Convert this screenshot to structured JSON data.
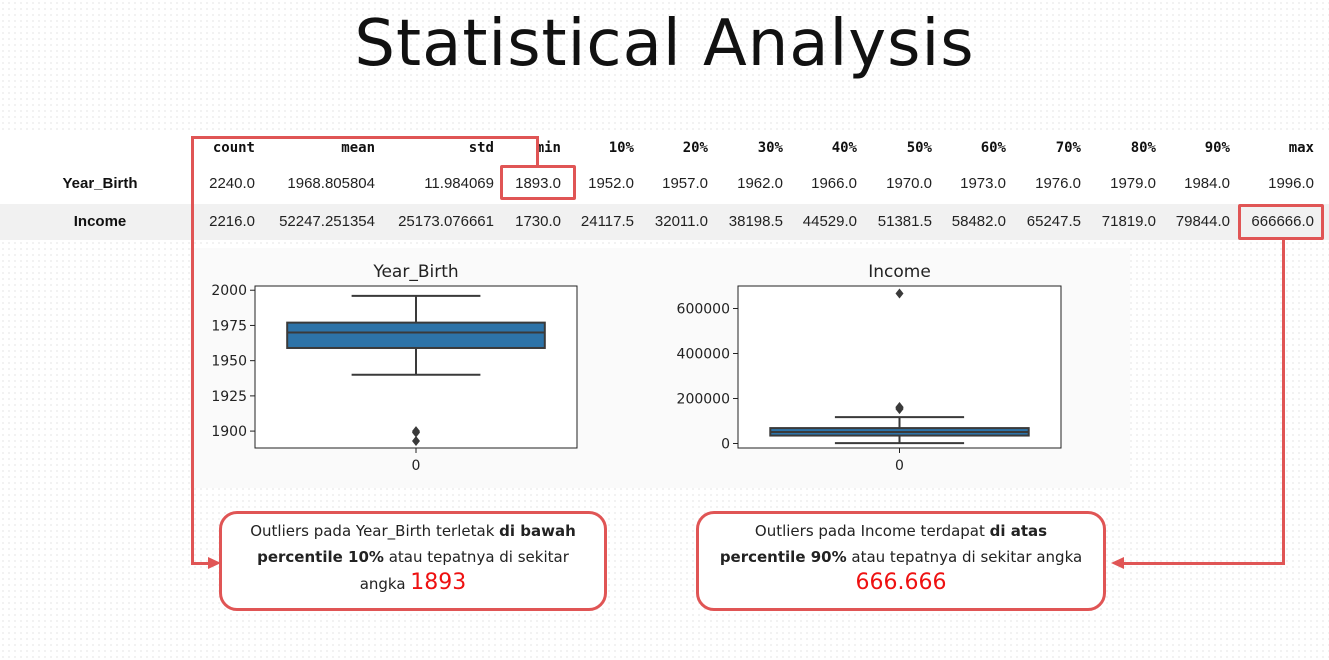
{
  "title": "Statistical Analysis",
  "table": {
    "columns": [
      "count",
      "mean",
      "std",
      "min",
      "10%",
      "20%",
      "30%",
      "40%",
      "50%",
      "60%",
      "70%",
      "80%",
      "90%",
      "max"
    ],
    "rows": [
      {
        "label": "Year_Birth",
        "values": [
          "2240.0",
          "1968.805804",
          "11.984069",
          "1893.0",
          "1952.0",
          "1957.0",
          "1962.0",
          "1966.0",
          "1970.0",
          "1973.0",
          "1976.0",
          "1979.0",
          "1984.0",
          "1996.0"
        ]
      },
      {
        "label": "Income",
        "values": [
          "2216.0",
          "52247.251354",
          "25173.076661",
          "1730.0",
          "24117.5",
          "32011.0",
          "38198.5",
          "44529.0",
          "51381.5",
          "58482.0",
          "65247.5",
          "71819.0",
          "79844.0",
          "666666.0"
        ]
      }
    ]
  },
  "chart_data": [
    {
      "type": "box",
      "title": "Year_Birth",
      "categories": [
        "0"
      ],
      "ylim": [
        1888,
        2003
      ],
      "yticks": [
        1900,
        1925,
        1950,
        1975,
        2000
      ],
      "box": {
        "q1": 1959,
        "median": 1970,
        "q3": 1977,
        "whisker_low": 1940,
        "whisker_high": 1996,
        "outliers": [
          1893,
          1899,
          1900
        ]
      },
      "color": "#2d73a8"
    },
    {
      "type": "box",
      "title": "Income",
      "categories": [
        "0"
      ],
      "ylim": [
        -20000,
        700000
      ],
      "yticks": [
        0,
        200000,
        400000,
        600000
      ],
      "box": {
        "q1": 35300,
        "median": 51381,
        "q3": 68500,
        "whisker_low": 1730,
        "whisker_high": 117000,
        "outliers": [
          153000,
          157000,
          160000,
          162000,
          666666
        ]
      },
      "color": "#2d73a8"
    }
  ],
  "callouts": {
    "left": {
      "part1": "Outliers pada Year_Birth terletak ",
      "bold1": "di bawah percentile 10%",
      "part2": " atau tepatnya di sekitar angka ",
      "big": "1893"
    },
    "right": {
      "part1": "Outliers pada Income terdapat ",
      "bold1": "di atas percentile 90%",
      "part2": " atau tepatnya di sekitar angka",
      "big": "666.666"
    }
  },
  "colors": {
    "accent": "#e05555",
    "box": "#2d73a8",
    "highlight": "#ee1111"
  }
}
